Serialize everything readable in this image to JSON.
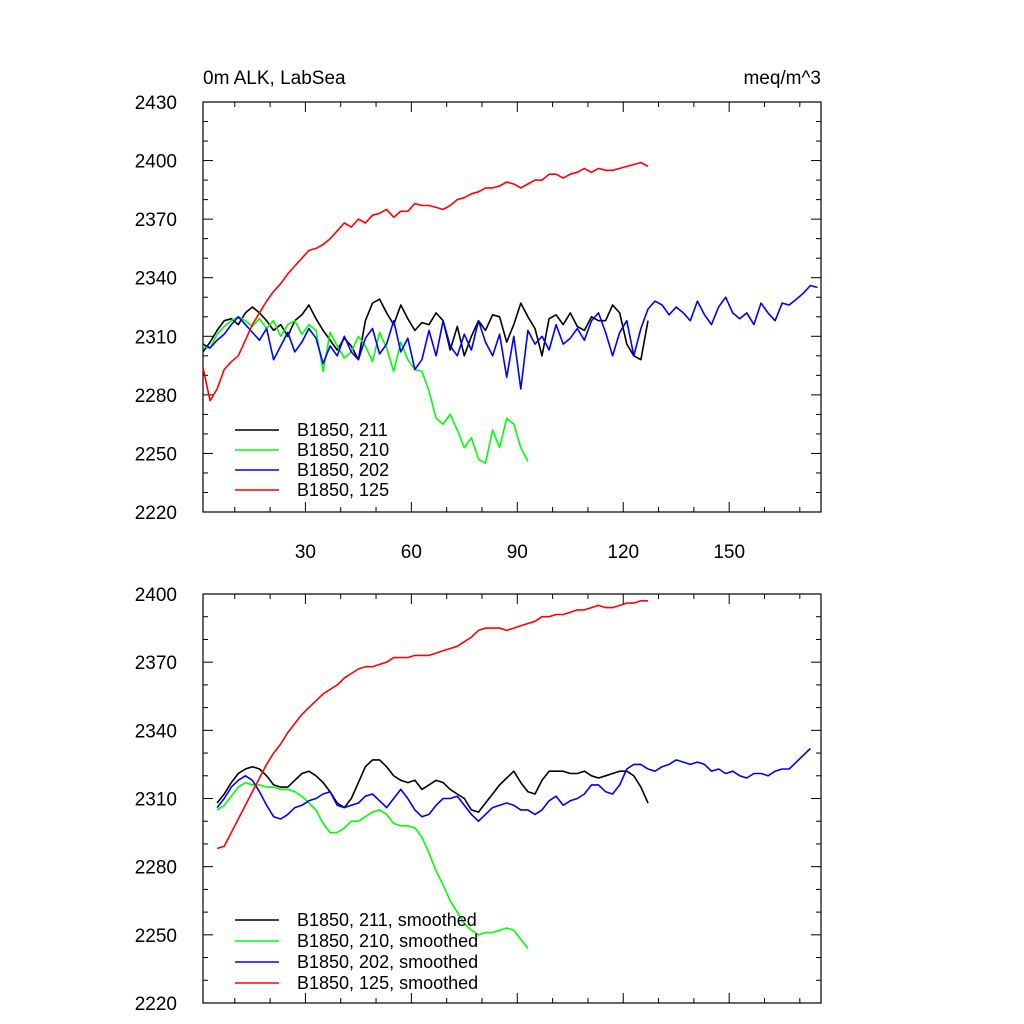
{
  "chart_data": [
    {
      "type": "line",
      "title_left": "0m ALK, LabSea",
      "title_right": "meq/m^3",
      "xlim": [
        1,
        176
      ],
      "ylim": [
        2220,
        2430
      ],
      "xticks": [
        30,
        60,
        90,
        120,
        150
      ],
      "yticks": [
        2220,
        2250,
        2280,
        2310,
        2340,
        2370,
        2400,
        2430
      ],
      "legend_position": "bottom-left",
      "series": [
        {
          "name": "B1850, 211",
          "color": "#000000",
          "x": [
            1,
            3,
            5,
            7,
            9,
            11,
            13,
            15,
            17,
            19,
            21,
            23,
            25,
            27,
            29,
            31,
            33,
            35,
            37,
            39,
            41,
            43,
            45,
            47,
            49,
            51,
            53,
            55,
            57,
            59,
            61,
            63,
            65,
            67,
            69,
            71,
            73,
            75,
            77,
            79,
            81,
            83,
            85,
            87,
            89,
            91,
            93,
            95,
            97,
            99,
            101,
            103,
            105,
            107,
            109,
            111,
            113,
            115,
            117,
            119,
            121,
            123,
            125,
            127
          ],
          "values": [
            2302,
            2307,
            2313,
            2318,
            2319,
            2316,
            2322,
            2325,
            2322,
            2318,
            2313,
            2316,
            2310,
            2318,
            2321,
            2326,
            2319,
            2313,
            2308,
            2303,
            2309,
            2305,
            2298,
            2318,
            2327,
            2329,
            2322,
            2316,
            2326,
            2319,
            2313,
            2317,
            2316,
            2322,
            2318,
            2303,
            2315,
            2300,
            2310,
            2318,
            2313,
            2321,
            2320,
            2307,
            2316,
            2327,
            2320,
            2314,
            2300,
            2319,
            2321,
            2316,
            2322,
            2315,
            2313,
            2320,
            2318,
            2318,
            2326,
            2322,
            2306,
            2300,
            2298,
            2318
          ]
        },
        {
          "name": "B1850, 210",
          "color": "#00ff00",
          "x": [
            1,
            3,
            5,
            7,
            9,
            11,
            13,
            15,
            17,
            19,
            21,
            23,
            25,
            27,
            29,
            31,
            33,
            35,
            37,
            39,
            41,
            43,
            45,
            47,
            49,
            51,
            53,
            55,
            57,
            59,
            61,
            63,
            65,
            67,
            69,
            71,
            73,
            75,
            77,
            79,
            81,
            83,
            85,
            87,
            89,
            91,
            93
          ],
          "values": [
            2305,
            2304,
            2311,
            2315,
            2318,
            2320,
            2318,
            2315,
            2319,
            2314,
            2318,
            2310,
            2316,
            2318,
            2311,
            2316,
            2313,
            2292,
            2312,
            2305,
            2299,
            2302,
            2310,
            2305,
            2297,
            2312,
            2304,
            2292,
            2307,
            2298,
            2293,
            2292,
            2282,
            2268,
            2265,
            2270,
            2262,
            2253,
            2258,
            2247,
            2245,
            2262,
            2253,
            2268,
            2265,
            2253,
            2246
          ]
        },
        {
          "name": "B1850, 202",
          "color": "#0000ff",
          "x": [
            1,
            3,
            5,
            7,
            9,
            11,
            13,
            15,
            17,
            19,
            21,
            23,
            25,
            27,
            29,
            31,
            33,
            35,
            37,
            39,
            41,
            43,
            45,
            47,
            49,
            51,
            53,
            55,
            57,
            59,
            61,
            63,
            65,
            67,
            69,
            71,
            73,
            75,
            77,
            79,
            81,
            83,
            85,
            87,
            89,
            91,
            93,
            95,
            97,
            99,
            101,
            103,
            105,
            107,
            109,
            111,
            113,
            115,
            117,
            119,
            121,
            123,
            125,
            127,
            129,
            131,
            133,
            135,
            137,
            139,
            141,
            143,
            145,
            147,
            149,
            151,
            153,
            155,
            157,
            159,
            161,
            163,
            165,
            167,
            169,
            171,
            173,
            175
          ],
          "values": [
            2306,
            2304,
            2308,
            2311,
            2316,
            2320,
            2316,
            2312,
            2308,
            2314,
            2298,
            2305,
            2312,
            2302,
            2307,
            2314,
            2309,
            2296,
            2305,
            2300,
            2310,
            2302,
            2298,
            2309,
            2314,
            2301,
            2306,
            2318,
            2302,
            2309,
            2293,
            2298,
            2313,
            2300,
            2318,
            2305,
            2300,
            2311,
            2303,
            2318,
            2307,
            2300,
            2311,
            2289,
            2310,
            2283,
            2313,
            2306,
            2310,
            2303,
            2316,
            2306,
            2309,
            2314,
            2308,
            2318,
            2322,
            2312,
            2300,
            2312,
            2318,
            2300,
            2314,
            2324,
            2328,
            2326,
            2321,
            2325,
            2322,
            2318,
            2328,
            2321,
            2316,
            2325,
            2330,
            2322,
            2319,
            2322,
            2316,
            2327,
            2322,
            2318,
            2327,
            2326,
            2329,
            2332,
            2336,
            2335
          ]
        },
        {
          "name": "B1850, 125",
          "color": "#ff0000",
          "x": [
            1,
            3,
            5,
            7,
            9,
            11,
            13,
            15,
            17,
            19,
            21,
            23,
            25,
            27,
            29,
            31,
            33,
            35,
            37,
            39,
            41,
            43,
            45,
            47,
            49,
            51,
            53,
            55,
            57,
            59,
            61,
            63,
            65,
            67,
            69,
            71,
            73,
            75,
            77,
            79,
            81,
            83,
            85,
            87,
            89,
            91,
            93,
            95,
            97,
            99,
            101,
            103,
            105,
            107,
            109,
            111,
            113,
            115,
            117,
            119,
            121,
            123,
            125,
            127
          ],
          "values": [
            2294,
            2277,
            2283,
            2293,
            2297,
            2300,
            2308,
            2316,
            2322,
            2328,
            2333,
            2337,
            2342,
            2346,
            2350,
            2354,
            2355,
            2357,
            2360,
            2364,
            2368,
            2366,
            2370,
            2368,
            2372,
            2373,
            2375,
            2371,
            2374,
            2374,
            2378,
            2377,
            2377,
            2376,
            2375,
            2377,
            2380,
            2381,
            2383,
            2384,
            2386,
            2386,
            2387,
            2389,
            2388,
            2386,
            2388,
            2390,
            2390,
            2393,
            2393,
            2391,
            2393,
            2394,
            2396,
            2394,
            2396,
            2395,
            2395,
            2396,
            2397,
            2398,
            2399,
            2397
          ]
        }
      ]
    },
    {
      "type": "line",
      "xlim": [
        1,
        176
      ],
      "ylim": [
        2220,
        2400
      ],
      "yticks": [
        2220,
        2250,
        2280,
        2310,
        2340,
        2370,
        2400
      ],
      "legend_position": "bottom-left",
      "series": [
        {
          "name": "B1850, 211, smoothed",
          "color": "#000000",
          "x": [
            5,
            7,
            9,
            11,
            13,
            15,
            17,
            19,
            21,
            23,
            25,
            27,
            29,
            31,
            33,
            35,
            37,
            39,
            41,
            43,
            45,
            47,
            49,
            51,
            53,
            55,
            57,
            59,
            61,
            63,
            65,
            67,
            69,
            71,
            73,
            75,
            77,
            79,
            81,
            83,
            85,
            87,
            89,
            91,
            93,
            95,
            97,
            99,
            101,
            103,
            105,
            107,
            109,
            111,
            113,
            115,
            117,
            119,
            121,
            123,
            125,
            127
          ],
          "values": [
            2308,
            2312,
            2317,
            2321,
            2323,
            2324,
            2323,
            2320,
            2316,
            2315,
            2315,
            2318,
            2321,
            2322,
            2320,
            2317,
            2313,
            2308,
            2306,
            2310,
            2317,
            2324,
            2327,
            2327,
            2324,
            2320,
            2318,
            2317,
            2318,
            2314,
            2316,
            2318,
            2317,
            2314,
            2312,
            2310,
            2305,
            2304,
            2308,
            2312,
            2316,
            2319,
            2322,
            2317,
            2313,
            2312,
            2318,
            2322,
            2322,
            2322,
            2321,
            2321,
            2322,
            2320,
            2319,
            2320,
            2321,
            2322,
            2322,
            2320,
            2315,
            2308
          ]
        },
        {
          "name": "B1850, 210, smoothed",
          "color": "#00ff00",
          "x": [
            5,
            7,
            9,
            11,
            13,
            15,
            17,
            19,
            21,
            23,
            25,
            27,
            29,
            31,
            33,
            35,
            37,
            39,
            41,
            43,
            45,
            47,
            49,
            51,
            53,
            55,
            57,
            59,
            61,
            63,
            65,
            67,
            69,
            71,
            73,
            75,
            77,
            79,
            81,
            83,
            85,
            87,
            89,
            91,
            93
          ],
          "values": [
            2305,
            2307,
            2311,
            2315,
            2317,
            2316,
            2316,
            2315,
            2315,
            2314,
            2314,
            2313,
            2311,
            2308,
            2305,
            2299,
            2295,
            2295,
            2297,
            2300,
            2300,
            2302,
            2304,
            2305,
            2303,
            2299,
            2298,
            2298,
            2297,
            2293,
            2286,
            2278,
            2272,
            2265,
            2260,
            2255,
            2252,
            2250,
            2251,
            2251,
            2252,
            2253,
            2252,
            2248,
            2244
          ]
        },
        {
          "name": "B1850, 202, smoothed",
          "color": "#0000ff",
          "x": [
            5,
            7,
            9,
            11,
            13,
            15,
            17,
            19,
            21,
            23,
            25,
            27,
            29,
            31,
            33,
            35,
            37,
            39,
            41,
            43,
            45,
            47,
            49,
            51,
            53,
            55,
            57,
            59,
            61,
            63,
            65,
            67,
            69,
            71,
            73,
            75,
            77,
            79,
            81,
            83,
            85,
            87,
            89,
            91,
            93,
            95,
            97,
            99,
            101,
            103,
            105,
            107,
            109,
            111,
            113,
            115,
            117,
            119,
            121,
            123,
            125,
            127,
            129,
            131,
            133,
            135,
            137,
            139,
            141,
            143,
            145,
            147,
            149,
            151,
            153,
            155,
            157,
            159,
            161,
            163,
            165,
            167,
            169,
            171,
            173
          ],
          "values": [
            2306,
            2310,
            2315,
            2318,
            2320,
            2318,
            2313,
            2307,
            2302,
            2301,
            2303,
            2306,
            2307,
            2309,
            2310,
            2312,
            2313,
            2307,
            2306,
            2307,
            2308,
            2311,
            2312,
            2309,
            2306,
            2310,
            2314,
            2310,
            2305,
            2302,
            2303,
            2307,
            2310,
            2310,
            2311,
            2307,
            2303,
            2300,
            2303,
            2306,
            2307,
            2308,
            2307,
            2305,
            2305,
            2303,
            2305,
            2309,
            2311,
            2307,
            2309,
            2310,
            2312,
            2316,
            2316,
            2313,
            2312,
            2316,
            2323,
            2325,
            2325,
            2323,
            2322,
            2324,
            2325,
            2327,
            2326,
            2325,
            2326,
            2325,
            2322,
            2323,
            2321,
            2322,
            2320,
            2319,
            2321,
            2321,
            2320,
            2322,
            2323,
            2323,
            2326,
            2329,
            2332
          ]
        },
        {
          "name": "B1850, 125, smoothed",
          "color": "#ff0000",
          "x": [
            5,
            7,
            9,
            11,
            13,
            15,
            17,
            19,
            21,
            23,
            25,
            27,
            29,
            31,
            33,
            35,
            37,
            39,
            41,
            43,
            45,
            47,
            49,
            51,
            53,
            55,
            57,
            59,
            61,
            63,
            65,
            67,
            69,
            71,
            73,
            75,
            77,
            79,
            81,
            83,
            85,
            87,
            89,
            91,
            93,
            95,
            97,
            99,
            101,
            103,
            105,
            107,
            109,
            111,
            113,
            115,
            117,
            119,
            121,
            123,
            125,
            127
          ],
          "values": [
            2288,
            2289,
            2295,
            2301,
            2307,
            2313,
            2319,
            2325,
            2330,
            2334,
            2339,
            2343,
            2347,
            2350,
            2353,
            2356,
            2358,
            2360,
            2363,
            2365,
            2367,
            2368,
            2368,
            2369,
            2370,
            2372,
            2372,
            2372,
            2373,
            2373,
            2373,
            2374,
            2375,
            2376,
            2377,
            2379,
            2381,
            2384,
            2385,
            2385,
            2385,
            2384,
            2385,
            2386,
            2387,
            2388,
            2390,
            2390,
            2391,
            2391,
            2392,
            2393,
            2393,
            2394,
            2395,
            2394,
            2394,
            2395,
            2396,
            2396,
            2397,
            2397
          ]
        }
      ]
    }
  ]
}
